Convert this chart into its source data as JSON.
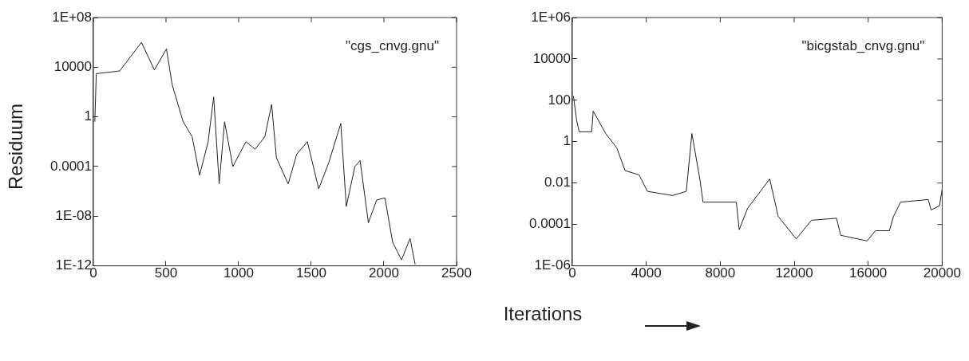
{
  "chart_data": [
    {
      "type": "line",
      "ylabel": "Residuum",
      "log": "y",
      "grid": false,
      "legend": false,
      "marker": "none",
      "line_style": "solid",
      "annotations": [
        "\"cgs_cnvg.gnu\""
      ],
      "xlim": [
        0,
        2500
      ],
      "xticks": [
        0,
        500,
        1000,
        1500,
        2000,
        2500
      ],
      "ylim": [
        1e-12,
        100000000.0
      ],
      "yticks": [
        {
          "value": 100000000.0,
          "label": "1E+08"
        },
        10000,
        1,
        0.0001,
        {
          "value": 1e-08,
          "label": "1E-08"
        },
        {
          "value": 1e-12,
          "label": "1E-12"
        }
      ],
      "series": [
        {
          "color": "#222222",
          "x": [
            10,
            20,
            181,
            331,
            420,
            503,
            542,
            618,
            680,
            731,
            790,
            828,
            866,
            903,
            960,
            1050,
            1113,
            1180,
            1227,
            1260,
            1341,
            1400,
            1473,
            1551,
            1620,
            1703,
            1741,
            1800,
            1836,
            1893,
            1950,
            2007,
            2060,
            2121,
            2180,
            2215
          ],
          "values": [
            0.4,
            3000,
            5000,
            1000000.0,
            6000,
            300000.0,
            400,
            0.4,
            0.025,
            2e-05,
            0.01,
            40,
            4e-06,
            0.4,
            0.0001,
            0.01,
            0.0025,
            0.025,
            10,
            0.0005,
            4e-06,
            0.001,
            0.01,
            1.6e-06,
            0.0002,
            0.3,
            6e-08,
            0.0001,
            0.0003,
            3e-09,
            2e-07,
            3e-07,
            8e-11,
            3e-12,
            1.6e-10,
            1.3e-12
          ]
        }
      ]
    },
    {
      "type": "line",
      "xlabel": "Iterations",
      "log": "y",
      "grid": false,
      "legend": false,
      "marker": "none",
      "line_style": "solid",
      "annotations": [
        "\"bicgstab_cnvg.gnu\""
      ],
      "xlim": [
        0,
        20000
      ],
      "xticks": [
        0,
        4000,
        8000,
        12000,
        16000,
        20000
      ],
      "ylim": [
        1e-06,
        1000000.0
      ],
      "yticks": [
        {
          "value": 1000000.0,
          "label": "1E+06"
        },
        10000,
        100,
        1,
        0.01,
        0.0001,
        {
          "value": 1e-06,
          "label": "1E-06"
        }
      ],
      "series": [
        {
          "color": "#222222",
          "x": [
            60,
            240,
            375,
            1050,
            1130,
            1805,
            2405,
            2856,
            3610,
            4061,
            5415,
            6165,
            6467,
            6918,
            7067,
            8872,
            9025,
            9479,
            10678,
            11129,
            12108,
            12934,
            14288,
            14513,
            15944,
            16395,
            17146,
            17373,
            17749,
            19251,
            19400,
            19856,
            20000
          ],
          "values": [
            160,
            10,
            3,
            3,
            30,
            2.5,
            0.5,
            0.04,
            0.025,
            0.004,
            0.0025,
            0.004,
            2.5,
            0.012,
            0.0012,
            0.0012,
            5.6e-05,
            0.0006,
            0.016,
            0.00025,
            2e-05,
            0.00016,
            0.0002,
            3e-05,
            1.6e-05,
            5e-05,
            5e-05,
            0.00025,
            0.0012,
            0.0016,
            0.0005,
            0.0008,
            0.005
          ]
        }
      ]
    }
  ]
}
